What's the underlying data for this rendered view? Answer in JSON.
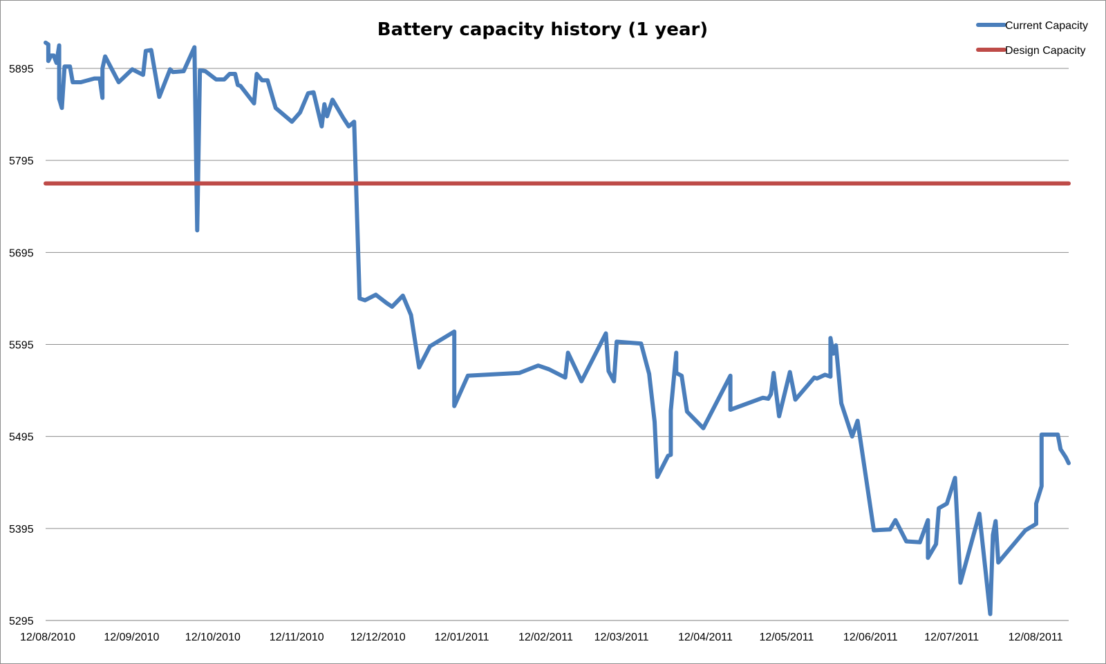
{
  "chart_data": {
    "type": "line",
    "title": "Battery capacity history (1 year)",
    "xlabel": "",
    "ylabel": "",
    "ylim": [
      5295,
      5995
    ],
    "y_ticks": [
      5295,
      5395,
      5495,
      5595,
      5695,
      5795,
      5895
    ],
    "x_ticks": [
      "12/08/2010",
      "12/09/2010",
      "12/10/2010",
      "12/11/2010",
      "12/12/2010",
      "12/01/2011",
      "12/02/2011",
      "12/03/2011",
      "12/04/2011",
      "12/05/2011",
      "12/06/2011",
      "12/07/2011",
      "12/08/2011"
    ],
    "x_range": [
      "2010-08-12",
      "2011-08-25"
    ],
    "grid": "horizontal",
    "legend": "top-right",
    "series": [
      {
        "name": "Current Capacity",
        "color": "#4a7ebb",
        "points": [
          [
            "2010-08-12",
            5923
          ],
          [
            "2010-08-13",
            5921
          ],
          [
            "2010-08-13",
            5903
          ],
          [
            "2010-08-14",
            5909
          ],
          [
            "2010-08-15",
            5909
          ],
          [
            "2010-08-16",
            5901
          ],
          [
            "2010-08-17",
            5920
          ],
          [
            "2010-08-17",
            5862
          ],
          [
            "2010-08-18",
            5852
          ],
          [
            "2010-08-19",
            5897
          ],
          [
            "2010-08-21",
            5897
          ],
          [
            "2010-08-22",
            5880
          ],
          [
            "2010-08-25",
            5880
          ],
          [
            "2010-08-30",
            5884
          ],
          [
            "2010-09-01",
            5884
          ],
          [
            "2010-09-02",
            5863
          ],
          [
            "2010-09-02",
            5895
          ],
          [
            "2010-09-03",
            5908
          ],
          [
            "2010-09-08",
            5880
          ],
          [
            "2010-09-13",
            5894
          ],
          [
            "2010-09-17",
            5888
          ],
          [
            "2010-09-18",
            5914
          ],
          [
            "2010-09-20",
            5915
          ],
          [
            "2010-09-23",
            5864
          ],
          [
            "2010-09-27",
            5894
          ],
          [
            "2010-09-28",
            5891
          ],
          [
            "2010-10-02",
            5892
          ],
          [
            "2010-10-06",
            5918
          ],
          [
            "2010-10-07",
            5719
          ],
          [
            "2010-10-08",
            5893
          ],
          [
            "2010-10-10",
            5892
          ],
          [
            "2010-10-14",
            5883
          ],
          [
            "2010-10-17",
            5883
          ],
          [
            "2010-10-19",
            5889
          ],
          [
            "2010-10-21",
            5889
          ],
          [
            "2010-10-22",
            5877
          ],
          [
            "2010-10-23",
            5876
          ],
          [
            "2010-10-28",
            5857
          ],
          [
            "2010-10-29",
            5889
          ],
          [
            "2010-10-31",
            5882
          ],
          [
            "2010-11-02",
            5882
          ],
          [
            "2010-11-05",
            5852
          ],
          [
            "2010-11-11",
            5837
          ],
          [
            "2010-11-14",
            5847
          ],
          [
            "2010-11-17",
            5868
          ],
          [
            "2010-11-19",
            5869
          ],
          [
            "2010-11-22",
            5832
          ],
          [
            "2010-11-23",
            5856
          ],
          [
            "2010-11-24",
            5843
          ],
          [
            "2010-11-26",
            5861
          ],
          [
            "2010-11-30",
            5841
          ],
          [
            "2010-12-02",
            5832
          ],
          [
            "2010-12-04",
            5837
          ],
          [
            "2010-12-06",
            5645
          ],
          [
            "2010-12-08",
            5643
          ],
          [
            "2010-12-12",
            5649
          ],
          [
            "2010-12-16",
            5640
          ],
          [
            "2010-12-18",
            5636
          ],
          [
            "2010-12-22",
            5648
          ],
          [
            "2010-12-25",
            5627
          ],
          [
            "2010-12-28",
            5570
          ],
          [
            "2011-01-01",
            5593
          ],
          [
            "2011-01-10",
            5609
          ],
          [
            "2011-01-10",
            5528
          ],
          [
            "2011-01-15",
            5561
          ],
          [
            "2011-02-03",
            5564
          ],
          [
            "2011-02-10",
            5572
          ],
          [
            "2011-02-14",
            5568
          ],
          [
            "2011-02-20",
            5559
          ],
          [
            "2011-02-21",
            5586
          ],
          [
            "2011-02-26",
            5555
          ],
          [
            "2011-03-07",
            5607
          ],
          [
            "2011-03-08",
            5566
          ],
          [
            "2011-03-10",
            5555
          ],
          [
            "2011-03-11",
            5598
          ],
          [
            "2011-03-20",
            5596
          ],
          [
            "2011-03-23",
            5563
          ],
          [
            "2011-03-25",
            5511
          ],
          [
            "2011-03-26",
            5451
          ],
          [
            "2011-03-30",
            5474
          ],
          [
            "2011-03-31",
            5475
          ],
          [
            "2011-03-31",
            5523
          ],
          [
            "2011-04-02",
            5586
          ],
          [
            "2011-04-02",
            5564
          ],
          [
            "2011-04-04",
            5561
          ],
          [
            "2011-04-06",
            5522
          ],
          [
            "2011-04-12",
            5504
          ],
          [
            "2011-04-22",
            5561
          ],
          [
            "2011-04-22",
            5524
          ],
          [
            "2011-05-04",
            5537
          ],
          [
            "2011-05-06",
            5536
          ],
          [
            "2011-05-07",
            5541
          ],
          [
            "2011-05-08",
            5564
          ],
          [
            "2011-05-10",
            5517
          ],
          [
            "2011-05-14",
            5565
          ],
          [
            "2011-05-16",
            5535
          ],
          [
            "2011-05-23",
            5559
          ],
          [
            "2011-05-24",
            5558
          ],
          [
            "2011-05-27",
            5562
          ],
          [
            "2011-05-29",
            5560
          ],
          [
            "2011-05-29",
            5602
          ],
          [
            "2011-05-30",
            5585
          ],
          [
            "2011-05-31",
            5594
          ],
          [
            "2011-06-02",
            5531
          ],
          [
            "2011-06-06",
            5495
          ],
          [
            "2011-06-08",
            5512
          ],
          [
            "2011-06-14",
            5393
          ],
          [
            "2011-06-20",
            5394
          ],
          [
            "2011-06-22",
            5404
          ],
          [
            "2011-06-26",
            5381
          ],
          [
            "2011-07-01",
            5380
          ],
          [
            "2011-07-04",
            5404
          ],
          [
            "2011-07-04",
            5363
          ],
          [
            "2011-07-07",
            5378
          ],
          [
            "2011-07-08",
            5417
          ],
          [
            "2011-07-11",
            5422
          ],
          [
            "2011-07-14",
            5450
          ],
          [
            "2011-07-16",
            5336
          ],
          [
            "2011-07-23",
            5411
          ],
          [
            "2011-07-27",
            5302
          ],
          [
            "2011-07-28",
            5388
          ],
          [
            "2011-07-29",
            5403
          ],
          [
            "2011-07-30",
            5358
          ],
          [
            "2011-08-09",
            5393
          ],
          [
            "2011-08-13",
            5400
          ],
          [
            "2011-08-13",
            5422
          ],
          [
            "2011-08-15",
            5441
          ],
          [
            "2011-08-15",
            5497
          ],
          [
            "2011-08-21",
            5497
          ],
          [
            "2011-08-22",
            5481
          ],
          [
            "2011-08-24",
            5472
          ],
          [
            "2011-08-25",
            5466
          ]
        ]
      },
      {
        "name": "Design Capacity",
        "color": "#be4b48",
        "points": [
          [
            "2010-08-12",
            5770
          ],
          [
            "2011-08-25",
            5770
          ]
        ]
      }
    ]
  }
}
